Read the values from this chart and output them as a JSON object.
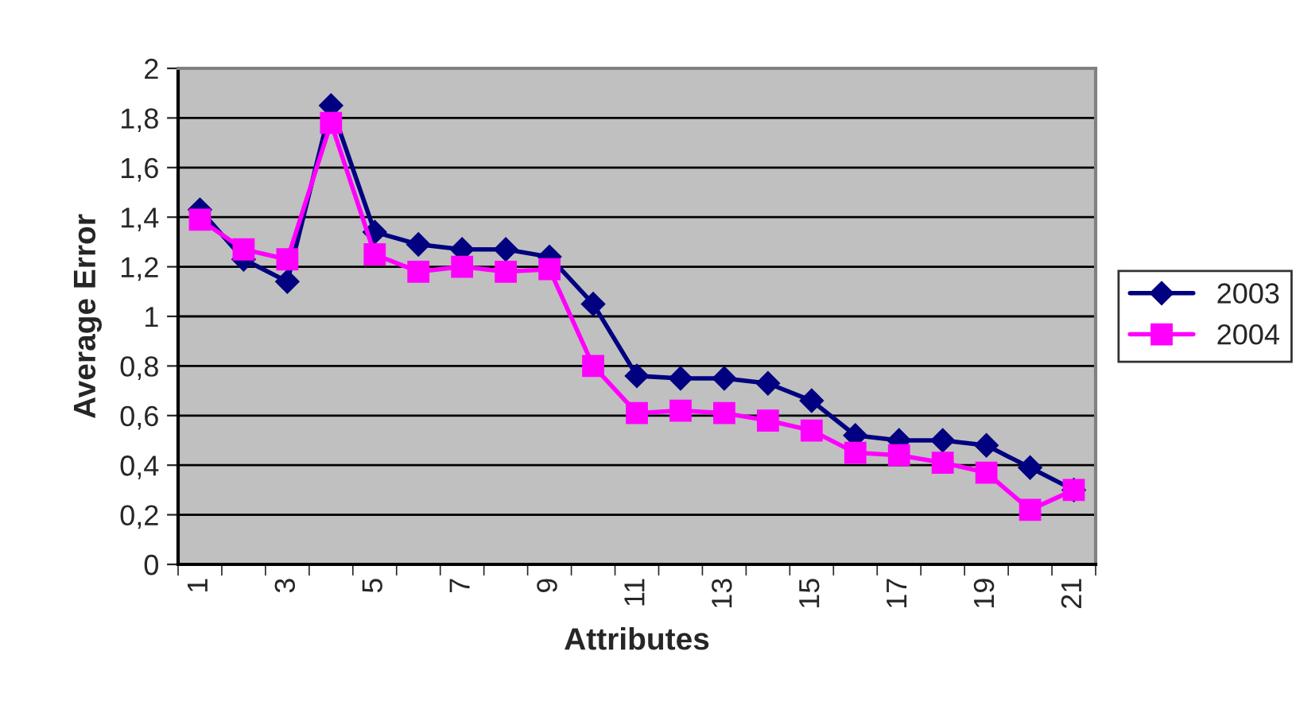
{
  "chart_data": {
    "type": "line",
    "xlabel": "Attributes",
    "ylabel": "Average Error",
    "categories": [
      "1",
      null,
      "3",
      null,
      "5",
      null,
      "7",
      null,
      "9",
      null,
      "11",
      null,
      "13",
      null,
      "15",
      null,
      "17",
      null,
      "19",
      null,
      "21"
    ],
    "series": [
      {
        "name": "2003",
        "color": "#000080",
        "marker": "diamond",
        "values": [
          1.43,
          1.23,
          1.14,
          1.85,
          1.34,
          1.29,
          1.27,
          1.27,
          1.24,
          1.05,
          0.76,
          0.75,
          0.75,
          0.73,
          0.66,
          0.52,
          0.5,
          0.5,
          0.48,
          0.39,
          0.3
        ]
      },
      {
        "name": "2004",
        "color": "#ff00ff",
        "marker": "square",
        "values": [
          1.39,
          1.27,
          1.23,
          1.78,
          1.25,
          1.18,
          1.2,
          1.18,
          1.19,
          0.8,
          0.61,
          0.62,
          0.61,
          0.58,
          0.54,
          0.45,
          0.44,
          0.41,
          0.37,
          0.22,
          0.3
        ]
      }
    ],
    "ylim": [
      0,
      2
    ],
    "yticks": [
      0,
      {
        "value": 0.2,
        "label": "0,2"
      },
      {
        "value": 0.4,
        "label": "0,4"
      },
      {
        "value": 0.6,
        "label": "0,6"
      },
      {
        "value": 0.8,
        "label": "0,8"
      },
      1,
      {
        "value": 1.2,
        "label": "1,2"
      },
      {
        "value": 1.4,
        "label": "1,4"
      },
      {
        "value": 1.6,
        "label": "1,6"
      },
      {
        "value": 1.8,
        "label": "1,8"
      },
      2
    ],
    "grid": "y",
    "legend": "right",
    "line_style": "solid"
  }
}
